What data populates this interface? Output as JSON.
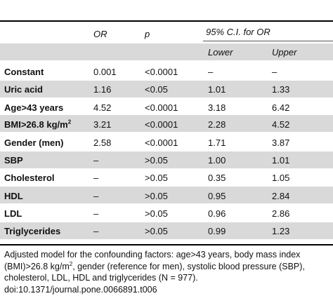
{
  "header": {
    "or": "OR",
    "p": "p",
    "ci": "95% C.I. for OR",
    "lower": "Lower",
    "upper": "Upper"
  },
  "rows": [
    {
      "label": "Constant",
      "or": "0.001",
      "p": "<0.0001",
      "lower": "–",
      "upper": "–"
    },
    {
      "label": "Uric acid",
      "or": "1.16",
      "p": "<0.05",
      "lower": "1.01",
      "upper": "1.33"
    },
    {
      "label": "Age>43 years",
      "or": "4.52",
      "p": "<0.0001",
      "lower": "3.18",
      "upper": "6.42"
    },
    {
      "label": "BMI>26.8 kg/m",
      "label_sup": "2",
      "or": "3.21",
      "p": "<0.0001",
      "lower": "2.28",
      "upper": "4.52"
    },
    {
      "label": "Gender (men)",
      "or": "2.58",
      "p": "<0.0001",
      "lower": "1.71",
      "upper": "3.87"
    },
    {
      "label": "SBP",
      "or": "–",
      "p": ">0.05",
      "lower": "1.00",
      "upper": "1.01"
    },
    {
      "label": "Cholesterol",
      "or": "–",
      "p": ">0.05",
      "lower": "0.35",
      "upper": "1.05"
    },
    {
      "label": "HDL",
      "or": "–",
      "p": ">0.05",
      "lower": "0.95",
      "upper": "2.84"
    },
    {
      "label": "LDL",
      "or": "–",
      "p": ">0.05",
      "lower": "0.96",
      "upper": "2.86"
    },
    {
      "label": "Triglycerides",
      "or": "–",
      "p": ">0.05",
      "lower": "0.99",
      "upper": "1.23"
    }
  ],
  "footnote": {
    "line1": "Adjusted model for the confounding factors: age>43 years, body mass index",
    "line2_a": "(BMI)>26.8 kg/m",
    "line2_sup": "2",
    "line2_b": ", gender (reference for men), systolic blood pressure (SBP),",
    "line3": "cholesterol, LDL, HDL and triglycerides (N = 977).",
    "line4": "doi:10.1371/journal.pone.0066891.t006"
  },
  "colors": {
    "band": "#d9d9d9",
    "rule": "#000000"
  }
}
